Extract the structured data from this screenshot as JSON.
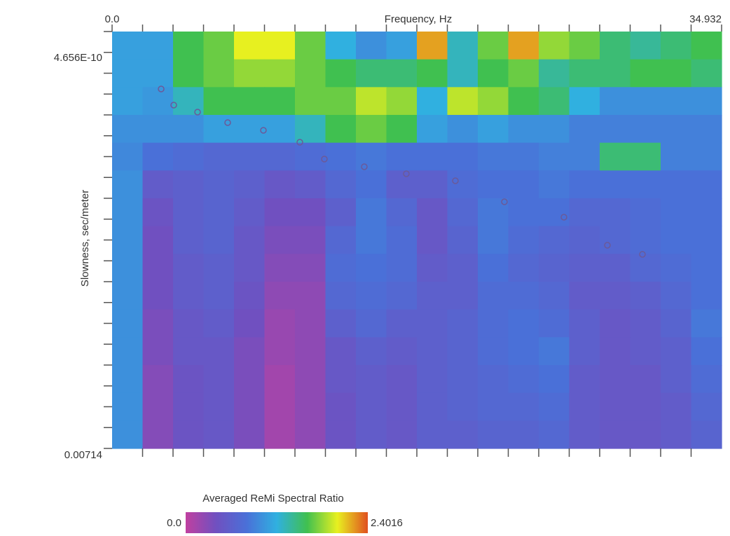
{
  "chart_data": {
    "type": "heatmap",
    "x_label": "Frequency, Hz",
    "y_label": "Slowness, sec/meter",
    "xlim": [
      0,
      34.932
    ],
    "ylim": [
      0.00714,
      4.656e-10
    ],
    "xticks": [
      {
        "value": 0,
        "label": "0.0"
      },
      34.932
    ],
    "yticks": [
      {
        "value": 4.656e-10,
        "label": "4.656E-10"
      },
      0.00714
    ],
    "xminorticks": [
      1.747,
      3.493,
      5.24,
      6.986,
      8.733,
      10.48,
      12.226,
      13.973,
      15.719,
      17.466,
      19.213,
      20.959,
      22.706,
      24.452,
      26.199,
      27.946,
      29.692,
      31.439,
      33.185
    ],
    "yminorticks": [
      0.000357,
      0.000714,
      0.001071,
      0.001428,
      0.001785,
      0.002142,
      0.002499,
      0.002856,
      0.003213,
      0.00357,
      0.003927,
      0.004284,
      0.004641,
      0.004998,
      0.005355,
      0.005712,
      0.006069,
      0.006426,
      0.006783
    ],
    "z": [
      [
        1.1,
        1.1,
        1.6,
        1.7,
        2.0,
        2.0,
        1.7,
        1.2,
        1.0,
        1.1,
        2.2,
        1.3,
        1.7,
        2.2,
        1.8,
        1.7,
        1.5,
        1.4,
        1.5,
        1.6
      ],
      [
        1.1,
        1.1,
        1.6,
        1.7,
        1.8,
        1.8,
        1.7,
        1.6,
        1.5,
        1.5,
        1.6,
        1.3,
        1.6,
        1.7,
        1.4,
        1.5,
        1.5,
        1.6,
        1.6,
        1.5
      ],
      [
        1.1,
        1.05,
        1.3,
        1.6,
        1.6,
        1.6,
        1.7,
        1.7,
        1.9,
        1.8,
        1.2,
        1.9,
        1.8,
        1.6,
        1.5,
        1.2,
        1.0,
        1.0,
        1.0,
        1.0
      ],
      [
        1.0,
        1.0,
        1.0,
        1.1,
        1.1,
        1.1,
        1.3,
        1.6,
        1.7,
        1.6,
        1.1,
        1.0,
        1.1,
        1.0,
        1.0,
        0.9,
        0.9,
        0.9,
        0.9,
        0.9
      ],
      [
        0.95,
        0.8,
        0.75,
        0.7,
        0.7,
        0.7,
        0.75,
        0.8,
        0.85,
        0.8,
        0.8,
        0.8,
        0.85,
        0.85,
        0.9,
        0.9,
        1.5,
        1.5,
        0.9,
        0.9
      ],
      [
        1.0,
        0.55,
        0.6,
        0.65,
        0.6,
        0.5,
        0.55,
        0.7,
        0.8,
        0.6,
        0.6,
        0.75,
        0.8,
        0.8,
        0.85,
        0.8,
        0.8,
        0.8,
        0.8,
        0.8
      ],
      [
        1.0,
        0.45,
        0.6,
        0.65,
        0.55,
        0.4,
        0.4,
        0.6,
        0.85,
        0.7,
        0.5,
        0.7,
        0.85,
        0.8,
        0.8,
        0.7,
        0.7,
        0.75,
        0.8,
        0.8
      ],
      [
        1.0,
        0.4,
        0.6,
        0.65,
        0.5,
        0.35,
        0.35,
        0.7,
        0.85,
        0.75,
        0.5,
        0.65,
        0.85,
        0.75,
        0.7,
        0.65,
        0.7,
        0.75,
        0.8,
        0.8
      ],
      [
        1.0,
        0.4,
        0.55,
        0.6,
        0.5,
        0.3,
        0.3,
        0.75,
        0.8,
        0.75,
        0.55,
        0.6,
        0.8,
        0.7,
        0.65,
        0.6,
        0.6,
        0.7,
        0.75,
        0.8
      ],
      [
        1.0,
        0.4,
        0.55,
        0.6,
        0.45,
        0.25,
        0.25,
        0.7,
        0.75,
        0.7,
        0.6,
        0.6,
        0.75,
        0.75,
        0.7,
        0.55,
        0.55,
        0.6,
        0.7,
        0.8
      ],
      [
        1.0,
        0.35,
        0.5,
        0.55,
        0.4,
        0.2,
        0.25,
        0.6,
        0.7,
        0.6,
        0.6,
        0.65,
        0.75,
        0.8,
        0.75,
        0.6,
        0.5,
        0.55,
        0.65,
        0.85
      ],
      [
        1.0,
        0.35,
        0.5,
        0.5,
        0.35,
        0.2,
        0.25,
        0.5,
        0.6,
        0.55,
        0.6,
        0.65,
        0.75,
        0.8,
        0.85,
        0.6,
        0.5,
        0.55,
        0.6,
        0.8
      ],
      [
        1.0,
        0.3,
        0.45,
        0.5,
        0.35,
        0.15,
        0.25,
        0.5,
        0.55,
        0.5,
        0.6,
        0.65,
        0.7,
        0.75,
        0.8,
        0.55,
        0.5,
        0.5,
        0.6,
        0.75
      ],
      [
        1.0,
        0.3,
        0.45,
        0.5,
        0.35,
        0.15,
        0.25,
        0.45,
        0.55,
        0.5,
        0.6,
        0.65,
        0.7,
        0.7,
        0.75,
        0.55,
        0.5,
        0.5,
        0.55,
        0.7
      ],
      [
        1.0,
        0.3,
        0.45,
        0.5,
        0.35,
        0.15,
        0.25,
        0.45,
        0.55,
        0.5,
        0.6,
        0.6,
        0.65,
        0.65,
        0.7,
        0.55,
        0.5,
        0.5,
        0.55,
        0.65
      ]
    ],
    "colors": [
      "#c040a0",
      "#7050c0",
      "#4a70d8",
      "#30b0e0",
      "#40c050",
      "#e8f020",
      "#e05020"
    ],
    "colorbar_title": "Averaged ReMi Spectral Ratio",
    "zlim": [
      0,
      2.4016
    ],
    "zticks": [
      {
        "value": 0,
        "label": "0.0"
      },
      2.4016
    ],
    "picks": {
      "color": "#6a5a9a",
      "x": [
        2.811,
        3.533,
        4.898,
        6.625,
        8.672,
        10.76,
        12.165,
        14.454,
        16.863,
        19.674,
        22.484,
        25.897,
        28.387,
        30.394
      ],
      "y": [
        0.000984,
        0.00126,
        0.00138,
        0.00156,
        0.001692,
        0.001896,
        0.002184,
        0.002316,
        0.002436,
        0.002556,
        0.002916,
        0.00318,
        0.00366,
        0.003816
      ]
    }
  }
}
